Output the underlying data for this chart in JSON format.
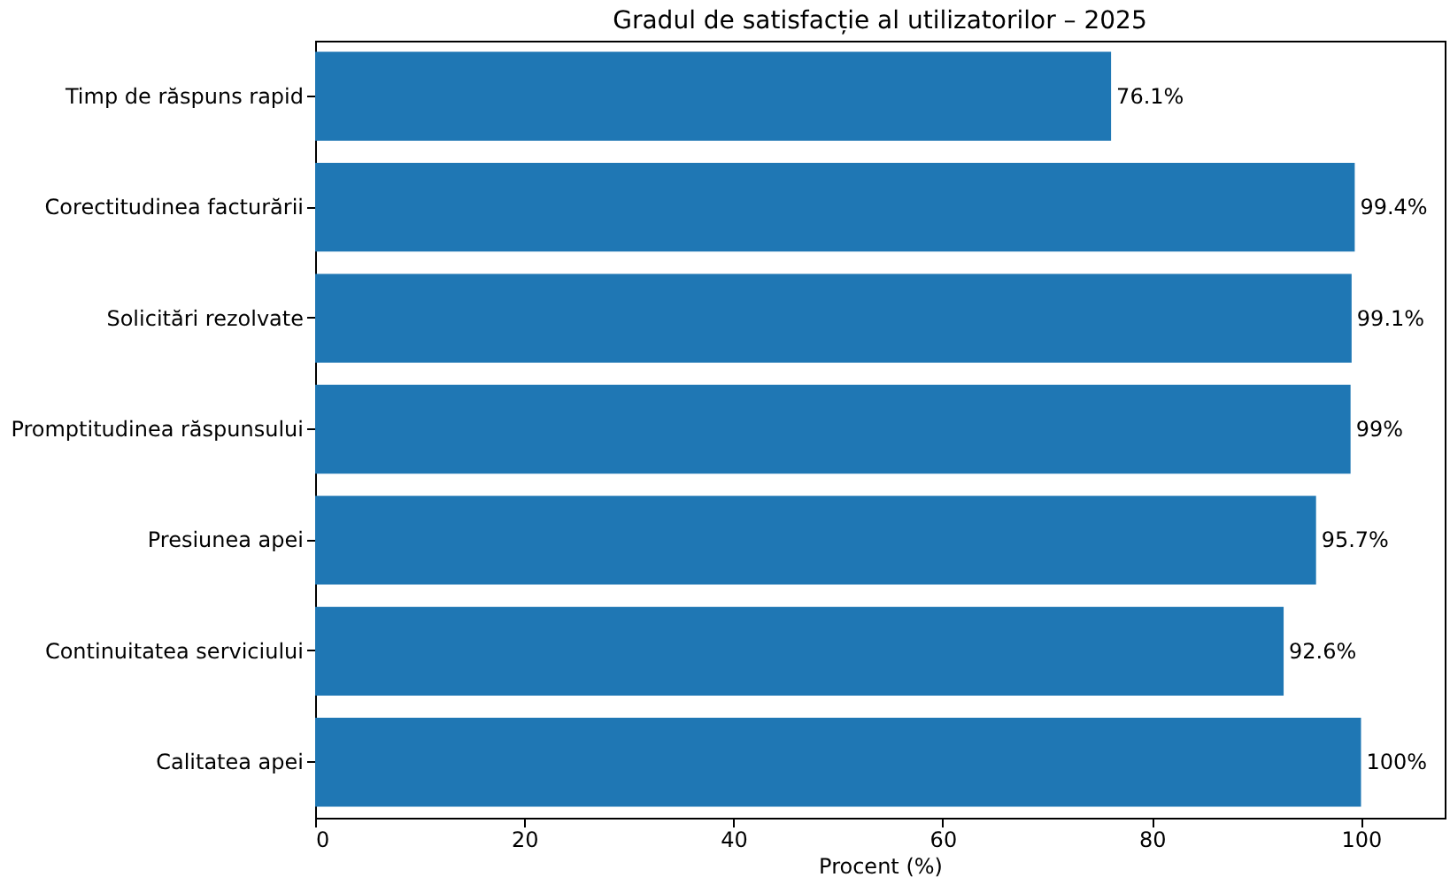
{
  "chart_data": {
    "type": "bar",
    "orientation": "horizontal",
    "title": "Gradul de satisfacție al utilizatorilor – 2025",
    "xlabel": "Procent (%)",
    "categories": [
      "Timp de răspuns rapid",
      "Corectitudinea facturării",
      "Solicitări rezolvate",
      "Promptitudinea răspunsului",
      "Presiunea apei",
      "Continuitatea serviciului",
      "Calitatea apei"
    ],
    "values": [
      76.1,
      99.4,
      99.1,
      99,
      95.7,
      92.6,
      100
    ],
    "value_labels": [
      "76.1%",
      "99.4%",
      "99.1%",
      "99%",
      "95.7%",
      "92.6%",
      "100%"
    ],
    "color": "#1f77b4",
    "xlim": [
      0,
      108
    ],
    "xticks": [
      0,
      20,
      40,
      60,
      80,
      100
    ],
    "grid": false
  }
}
